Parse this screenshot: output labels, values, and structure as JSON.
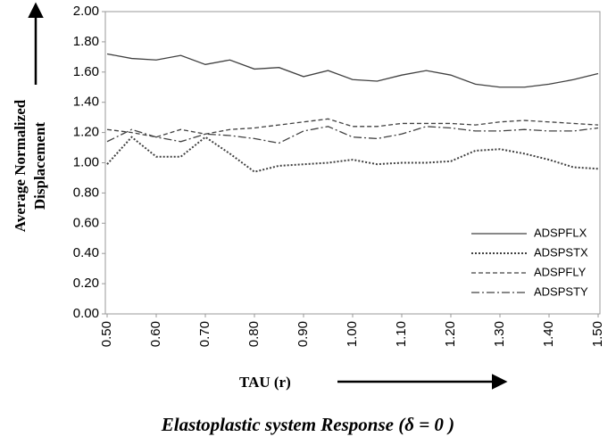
{
  "chart_data": {
    "type": "line",
    "title": "Elastoplastic system  Response (δ = 0 )",
    "xlabel": "TAU (r)",
    "ylabel": [
      "Average Normalized",
      "Displacement"
    ],
    "x": [
      0.5,
      0.55,
      0.6,
      0.65,
      0.7,
      0.75,
      0.8,
      0.85,
      0.9,
      0.95,
      1.0,
      1.05,
      1.1,
      1.15,
      1.2,
      1.25,
      1.3,
      1.35,
      1.4,
      1.45,
      1.5
    ],
    "xlim": [
      0.5,
      1.5
    ],
    "xticks": [
      {
        "value": 0.5,
        "label": "0.50"
      },
      {
        "value": 0.6,
        "label": "0.60"
      },
      {
        "value": 0.7,
        "label": "0.70"
      },
      {
        "value": 0.8,
        "label": "0.80"
      },
      {
        "value": 0.9,
        "label": "0.90"
      },
      {
        "value": 1.0,
        "label": "1.00"
      },
      {
        "value": 1.1,
        "label": "1.10"
      },
      {
        "value": 1.2,
        "label": "1.20"
      },
      {
        "value": 1.3,
        "label": "1.30"
      },
      {
        "value": 1.4,
        "label": "1.40"
      },
      {
        "value": 1.5,
        "label": "1.50"
      }
    ],
    "ylim": [
      0,
      2
    ],
    "yticks": [
      {
        "value": 0,
        "label": "0.00"
      },
      {
        "value": 0.2,
        "label": "0.20"
      },
      {
        "value": 0.4,
        "label": "0.40"
      },
      {
        "value": 0.6,
        "label": "0.60"
      },
      {
        "value": 0.8,
        "label": "0.80"
      },
      {
        "value": 1.0,
        "label": "1.00"
      },
      {
        "value": 1.2,
        "label": "1.20"
      },
      {
        "value": 1.4,
        "label": "1.40"
      },
      {
        "value": 1.6,
        "label": "1.60"
      },
      {
        "value": 1.8,
        "label": "1.80"
      },
      {
        "value": 2.0,
        "label": "2.00"
      }
    ],
    "grid": false,
    "legend": "lower right",
    "series": [
      {
        "name": "ADSPFLX",
        "color": "#404040",
        "dash": "solid",
        "values": [
          1.72,
          1.69,
          1.68,
          1.71,
          1.65,
          1.68,
          1.62,
          1.63,
          1.57,
          1.61,
          1.55,
          1.54,
          1.58,
          1.61,
          1.58,
          1.52,
          1.5,
          1.5,
          1.52,
          1.55,
          1.59
        ]
      },
      {
        "name": "ADSPSTX",
        "color": "#404040",
        "dash": "dotted",
        "values": [
          0.99,
          1.17,
          1.04,
          1.04,
          1.17,
          1.06,
          0.94,
          0.98,
          0.99,
          1.0,
          1.02,
          0.99,
          1.0,
          1.0,
          1.01,
          1.08,
          1.09,
          1.06,
          1.02,
          0.97,
          0.96
        ]
      },
      {
        "name": "ADSPFLY",
        "color": "#404040",
        "dash": "dashed",
        "values": [
          1.22,
          1.2,
          1.17,
          1.22,
          1.19,
          1.22,
          1.23,
          1.25,
          1.27,
          1.29,
          1.24,
          1.24,
          1.26,
          1.26,
          1.26,
          1.25,
          1.27,
          1.28,
          1.27,
          1.26,
          1.25
        ]
      },
      {
        "name": "ADSPSTY",
        "color": "#404040",
        "dash": "dashdot",
        "values": [
          1.14,
          1.22,
          1.17,
          1.14,
          1.19,
          1.18,
          1.16,
          1.13,
          1.21,
          1.24,
          1.17,
          1.16,
          1.19,
          1.24,
          1.23,
          1.21,
          1.21,
          1.22,
          1.21,
          1.21,
          1.23
        ]
      }
    ]
  }
}
